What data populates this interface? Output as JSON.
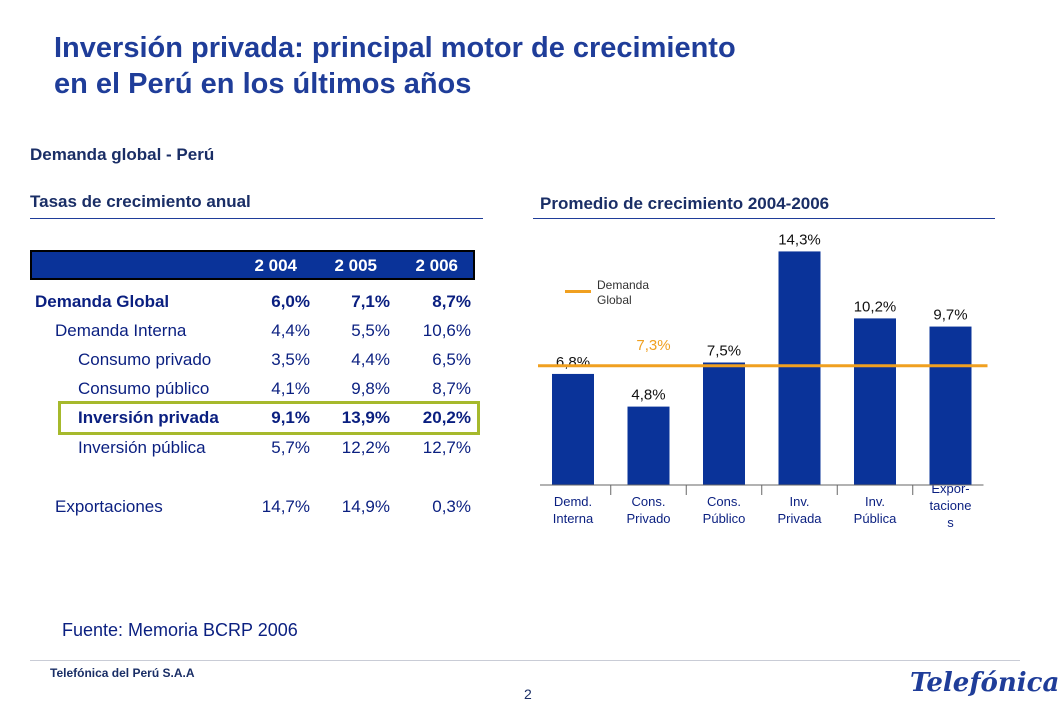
{
  "title_line1": "Inversión privada: principal motor de crecimiento",
  "title_line2": "en el Perú en los últimos años",
  "subtitle": "Demanda global - Perú",
  "left_heading": "Tasas de crecimiento anual",
  "right_heading": "Promedio de crecimiento 2004-2006",
  "table": {
    "headers": [
      "2 004",
      "2 005",
      "2 006"
    ],
    "rows": [
      {
        "label": "Demanda Global",
        "values": [
          "6,0%",
          "7,1%",
          "8,7%"
        ]
      },
      {
        "label": "Demanda Interna",
        "values": [
          "4,4%",
          "5,5%",
          "10,6%"
        ]
      },
      {
        "label": "Consumo privado",
        "values": [
          "3,5%",
          "4,4%",
          "6,5%"
        ]
      },
      {
        "label": "Consumo público",
        "values": [
          "4,1%",
          "9,8%",
          "8,7%"
        ]
      },
      {
        "label": "Inversión privada",
        "values": [
          "9,1%",
          "13,9%",
          "20,2%"
        ]
      },
      {
        "label": "Inversión pública",
        "values": [
          "5,7%",
          "12,2%",
          "12,7%"
        ]
      },
      {
        "label": "Exportaciones",
        "values": [
          "14,7%",
          "14,9%",
          "0,3%"
        ]
      }
    ]
  },
  "source": "Fuente: Memoria BCRP 2006",
  "company": "Telefónica del Perú S.A.A",
  "page_number": "2",
  "logo_text": "Telefónica",
  "colors": {
    "bar": "#0a3399",
    "line": "#f0a020",
    "highlight": "#a6b92c",
    "title": "#1f3d99"
  },
  "legend_label": "Demanda Global",
  "chart_data": {
    "type": "bar",
    "categories": [
      "Demd. Interna",
      "Cons. Privado",
      "Cons. Público",
      "Inv. Privada",
      "Inv. Pública",
      "Expor-tacione s"
    ],
    "category_lines": [
      [
        "Demd.",
        "Interna"
      ],
      [
        "Cons.",
        "Privado"
      ],
      [
        "Cons.",
        "Público"
      ],
      [
        "Inv.",
        "Privada"
      ],
      [
        "Inv.",
        "Pública"
      ],
      [
        "Expor-",
        "tacione",
        "s"
      ]
    ],
    "values": [
      6.8,
      4.8,
      7.5,
      14.3,
      10.2,
      9.7
    ],
    "value_labels": [
      "6,8%",
      "4,8%",
      "7,5%",
      "14,3%",
      "10,2%",
      "9,7%"
    ],
    "reference_line": {
      "name": "Demanda Global",
      "value": 7.3,
      "label": "7,3%"
    },
    "title": "Promedio de crecimiento 2004-2006",
    "ylim": [
      0,
      15
    ],
    "legend": "top-left"
  }
}
